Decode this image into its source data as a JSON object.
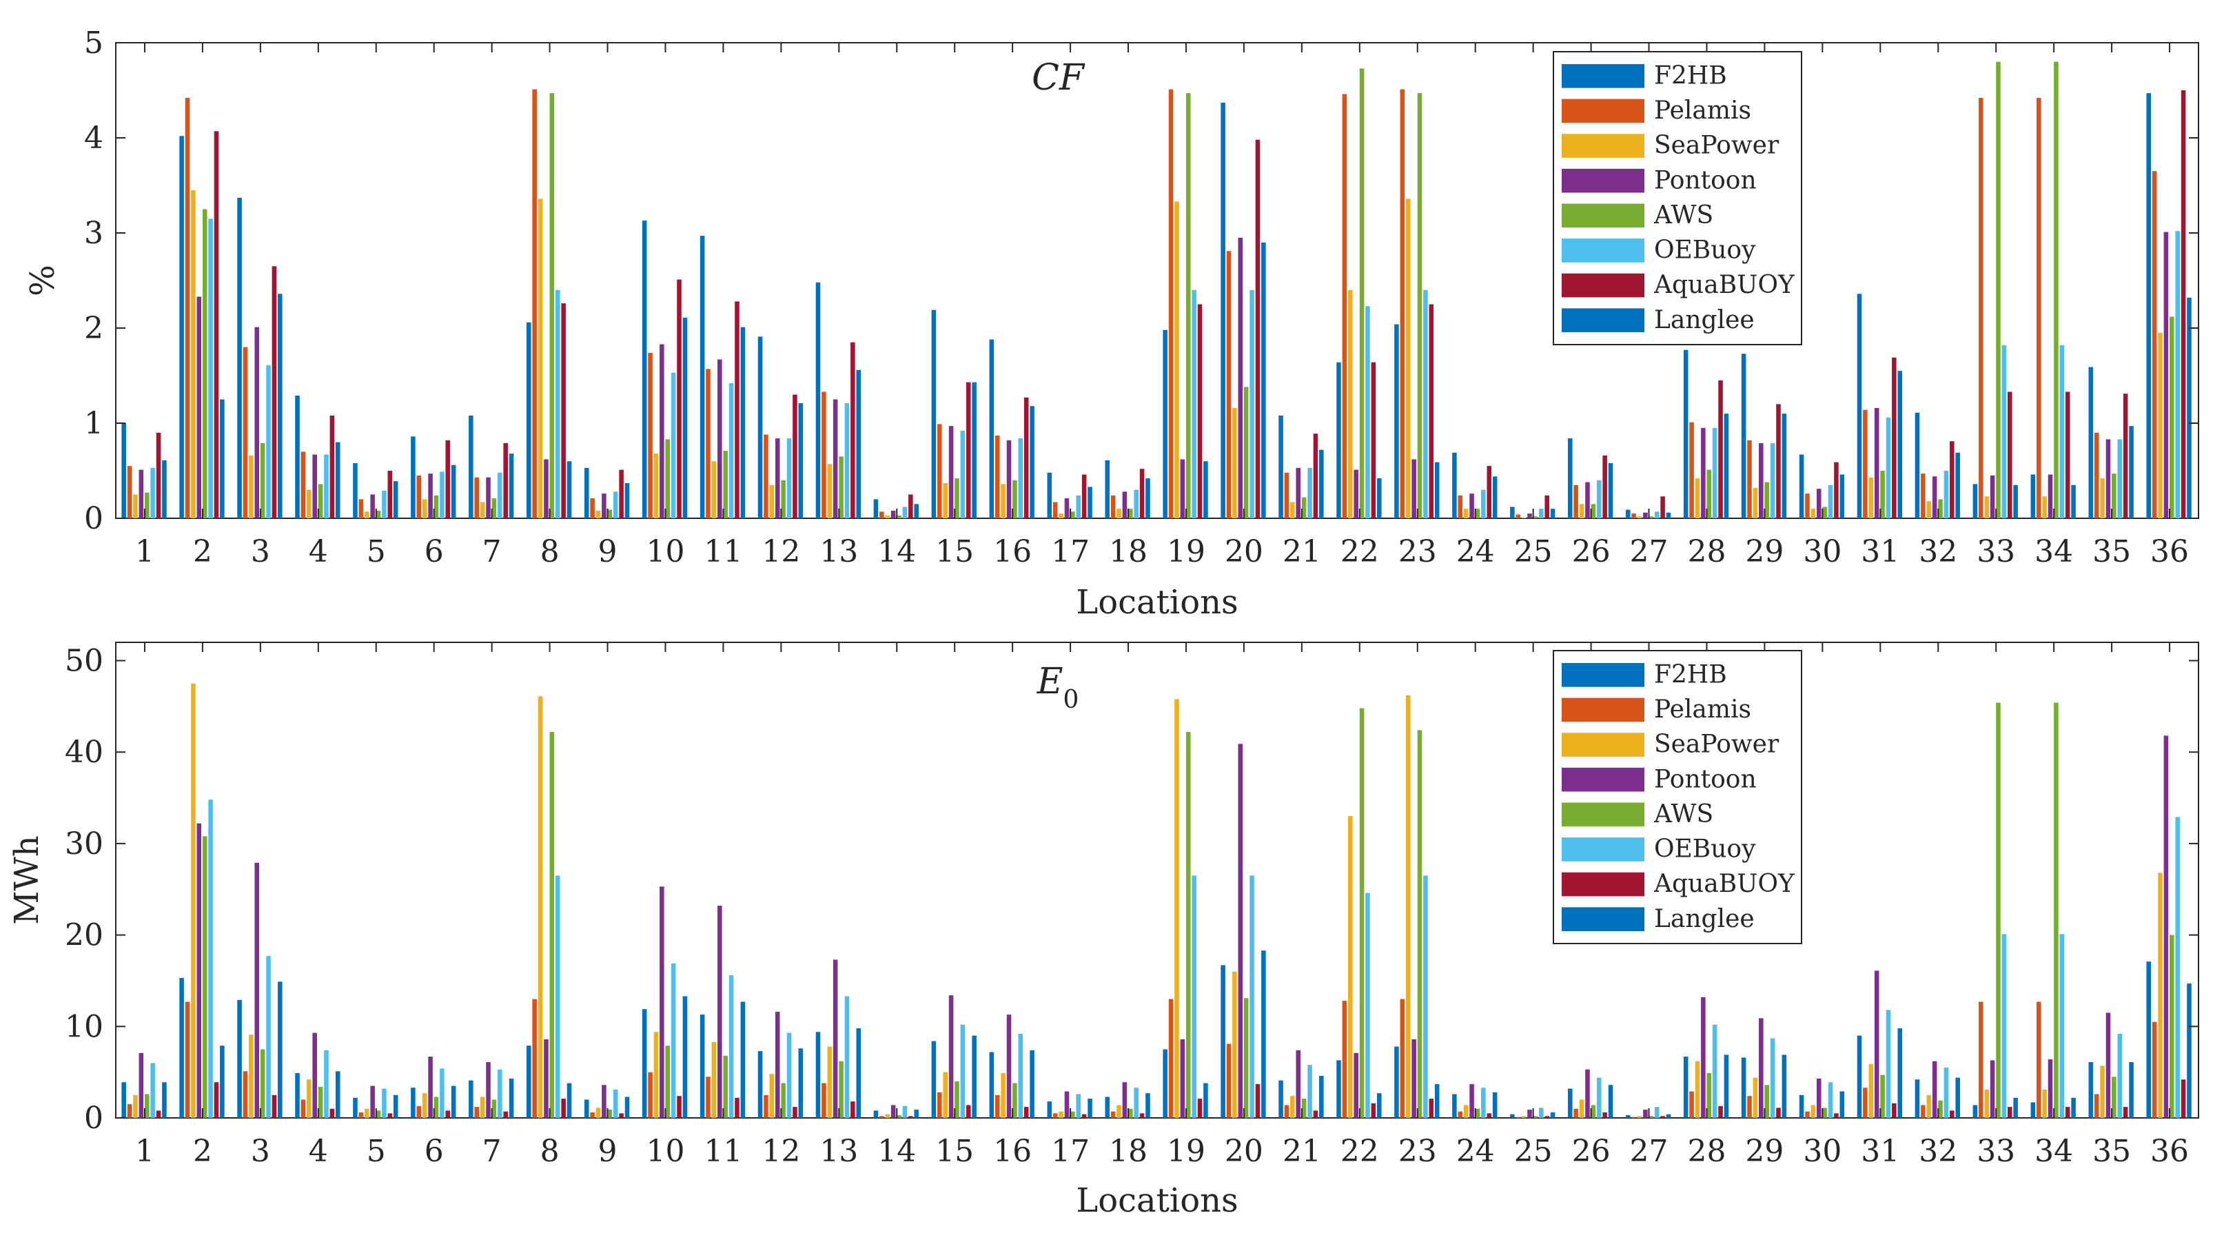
{
  "chart_data": [
    {
      "type": "bar",
      "title": "CF",
      "xlabel": "Locations",
      "ylabel": "%",
      "ylim": [
        0,
        5
      ],
      "yticks": [
        0,
        1,
        2,
        3,
        4,
        5
      ],
      "grid": false,
      "legend_position": "top-right",
      "categories": [
        "1",
        "2",
        "3",
        "4",
        "5",
        "6",
        "7",
        "8",
        "9",
        "10",
        "11",
        "12",
        "13",
        "14",
        "15",
        "16",
        "17",
        "18",
        "19",
        "20",
        "21",
        "22",
        "23",
        "24",
        "25",
        "26",
        "27",
        "28",
        "29",
        "30",
        "31",
        "32",
        "33",
        "34",
        "35",
        "36"
      ],
      "series": [
        {
          "name": "F2HB",
          "color": "#0072BD",
          "values": [
            1.0,
            4.02,
            3.37,
            1.29,
            0.58,
            0.86,
            1.08,
            2.06,
            0.53,
            3.13,
            2.97,
            1.91,
            2.48,
            0.2,
            2.19,
            1.88,
            0.48,
            0.61,
            1.98,
            4.37,
            1.08,
            1.64,
            2.04,
            0.69,
            0.12,
            0.84,
            0.09,
            1.77,
            1.73,
            0.67,
            2.36,
            1.11,
            0.36,
            0.46,
            1.59,
            4.47
          ]
        },
        {
          "name": "Pelamis",
          "color": "#D95319",
          "values": [
            0.55,
            4.42,
            1.8,
            0.7,
            0.2,
            0.45,
            0.43,
            4.51,
            0.21,
            1.74,
            1.57,
            0.88,
            1.33,
            0.07,
            0.99,
            0.87,
            0.17,
            0.24,
            4.51,
            2.81,
            0.48,
            4.46,
            4.51,
            0.24,
            0.04,
            0.35,
            0.05,
            1.01,
            0.82,
            0.26,
            1.14,
            0.47,
            4.42,
            4.42,
            0.9,
            3.65
          ]
        },
        {
          "name": "SeaPower",
          "color": "#EDB120",
          "values": [
            0.25,
            3.45,
            0.66,
            0.3,
            0.07,
            0.2,
            0.17,
            3.36,
            0.08,
            0.68,
            0.6,
            0.35,
            0.57,
            0.03,
            0.37,
            0.36,
            0.05,
            0.1,
            3.33,
            1.16,
            0.17,
            2.4,
            3.36,
            0.1,
            0.01,
            0.15,
            0.02,
            0.42,
            0.32,
            0.1,
            0.43,
            0.18,
            0.23,
            0.23,
            0.42,
            1.95
          ]
        },
        {
          "name": "Pontoon",
          "color": "#7E2F8E",
          "values": [
            0.51,
            2.33,
            2.01,
            0.67,
            0.25,
            0.47,
            0.43,
            0.62,
            0.26,
            1.83,
            1.67,
            0.84,
            1.25,
            0.08,
            0.97,
            0.82,
            0.21,
            0.28,
            0.62,
            2.95,
            0.53,
            0.51,
            0.62,
            0.26,
            0.05,
            0.38,
            0.06,
            0.95,
            0.79,
            0.31,
            1.16,
            0.44,
            0.45,
            0.46,
            0.83,
            3.01
          ]
        },
        {
          "name": "AWS",
          "color": "#77AC30",
          "values": [
            0.27,
            3.25,
            0.79,
            0.36,
            0.08,
            0.24,
            0.21,
            4.47,
            0.09,
            0.83,
            0.71,
            0.4,
            0.65,
            0.03,
            0.42,
            0.4,
            0.07,
            0.1,
            4.47,
            1.38,
            0.22,
            4.73,
            4.47,
            0.1,
            0.02,
            0.15,
            0.02,
            0.51,
            0.38,
            0.12,
            0.5,
            0.2,
            4.8,
            4.8,
            0.47,
            2.12
          ]
        },
        {
          "name": "OEBuoy",
          "color": "#4DBEEE",
          "values": [
            0.53,
            3.15,
            1.61,
            0.67,
            0.29,
            0.49,
            0.48,
            2.4,
            0.28,
            1.53,
            1.42,
            0.84,
            1.21,
            0.12,
            0.92,
            0.84,
            0.24,
            0.3,
            2.4,
            2.4,
            0.53,
            2.23,
            2.4,
            0.3,
            0.1,
            0.4,
            0.07,
            0.95,
            0.79,
            0.35,
            1.06,
            0.5,
            1.82,
            1.82,
            0.83,
            3.02
          ]
        },
        {
          "name": "AquaBUOY",
          "color": "#A2142F",
          "values": [
            0.9,
            4.07,
            2.65,
            1.08,
            0.5,
            0.82,
            0.79,
            2.26,
            0.51,
            2.51,
            2.28,
            1.3,
            1.85,
            0.25,
            1.43,
            1.27,
            0.46,
            0.52,
            2.25,
            3.98,
            0.89,
            1.64,
            2.25,
            0.55,
            0.24,
            0.66,
            0.23,
            1.45,
            1.2,
            0.59,
            1.69,
            0.81,
            1.33,
            1.33,
            1.31,
            4.5
          ]
        },
        {
          "name": "Langlee",
          "color": "#0072BD",
          "values": [
            0.61,
            1.25,
            2.36,
            0.8,
            0.39,
            0.56,
            0.68,
            0.6,
            0.37,
            2.11,
            2.01,
            1.21,
            1.56,
            0.15,
            1.43,
            1.18,
            0.33,
            0.42,
            0.6,
            2.9,
            0.72,
            0.42,
            0.59,
            0.44,
            0.1,
            0.58,
            0.06,
            1.1,
            1.1,
            0.46,
            1.55,
            0.69,
            0.35,
            0.35,
            0.97,
            2.32
          ]
        }
      ]
    },
    {
      "type": "bar",
      "title": "E0",
      "xlabel": "Locations",
      "ylabel": "MWh",
      "ylim": [
        0,
        52
      ],
      "yticks": [
        0,
        10,
        20,
        30,
        40,
        50
      ],
      "grid": false,
      "legend_position": "top-right",
      "categories": [
        "1",
        "2",
        "3",
        "4",
        "5",
        "6",
        "7",
        "8",
        "9",
        "10",
        "11",
        "12",
        "13",
        "14",
        "15",
        "16",
        "17",
        "18",
        "19",
        "20",
        "21",
        "22",
        "23",
        "24",
        "25",
        "26",
        "27",
        "28",
        "29",
        "30",
        "31",
        "32",
        "33",
        "34",
        "35",
        "36"
      ],
      "series": [
        {
          "name": "F2HB",
          "color": "#0072BD",
          "values": [
            3.9,
            15.3,
            12.9,
            4.9,
            2.2,
            3.3,
            4.1,
            7.9,
            2.0,
            11.9,
            11.3,
            7.3,
            9.4,
            0.8,
            8.4,
            7.2,
            1.8,
            2.3,
            7.5,
            16.7,
            4.1,
            6.3,
            7.8,
            2.6,
            0.4,
            3.2,
            0.3,
            6.7,
            6.6,
            2.5,
            9.0,
            4.2,
            1.4,
            1.7,
            6.1,
            17.1
          ]
        },
        {
          "name": "Pelamis",
          "color": "#D95319",
          "values": [
            1.5,
            12.7,
            5.1,
            2.0,
            0.6,
            1.3,
            1.2,
            13.0,
            0.6,
            5.0,
            4.5,
            2.5,
            3.8,
            0.2,
            2.8,
            2.5,
            0.5,
            0.7,
            13.0,
            8.1,
            1.4,
            12.8,
            13.0,
            0.7,
            0.1,
            1.0,
            0.1,
            2.9,
            2.4,
            0.7,
            3.3,
            1.4,
            12.7,
            12.7,
            2.6,
            10.5
          ]
        },
        {
          "name": "SeaPower",
          "color": "#EDB120",
          "values": [
            2.5,
            47.5,
            9.1,
            4.2,
            1.0,
            2.7,
            2.3,
            46.1,
            1.1,
            9.4,
            8.3,
            4.8,
            7.8,
            0.4,
            5.0,
            4.9,
            0.7,
            1.4,
            45.8,
            16.0,
            2.4,
            33.0,
            46.2,
            1.4,
            0.2,
            2.0,
            0.2,
            6.2,
            4.4,
            1.4,
            5.9,
            2.5,
            3.1,
            3.1,
            5.7,
            26.8
          ]
        },
        {
          "name": "Pontoon",
          "color": "#7E2F8E",
          "values": [
            7.1,
            32.2,
            27.9,
            9.3,
            3.5,
            6.7,
            6.1,
            8.6,
            3.6,
            25.3,
            23.2,
            11.6,
            17.3,
            1.4,
            13.4,
            11.3,
            2.9,
            3.9,
            8.6,
            40.9,
            7.4,
            7.1,
            8.6,
            3.7,
            0.9,
            5.3,
            0.9,
            13.2,
            10.9,
            4.3,
            16.1,
            6.2,
            6.3,
            6.4,
            11.5,
            41.8
          ]
        },
        {
          "name": "AWS",
          "color": "#77AC30",
          "values": [
            2.6,
            30.8,
            7.5,
            3.4,
            0.8,
            2.3,
            2.0,
            42.2,
            0.9,
            7.9,
            6.8,
            3.8,
            6.2,
            0.3,
            4.0,
            3.8,
            0.7,
            1.0,
            42.2,
            13.1,
            2.1,
            44.8,
            42.4,
            1.0,
            0.2,
            1.4,
            0.2,
            4.9,
            3.6,
            1.1,
            4.7,
            1.9,
            45.4,
            45.4,
            4.5,
            20.0
          ]
        },
        {
          "name": "OEBuoy",
          "color": "#4DBEEE",
          "values": [
            6.0,
            34.8,
            17.7,
            7.4,
            3.2,
            5.4,
            5.3,
            26.5,
            3.1,
            16.9,
            15.6,
            9.3,
            13.3,
            1.3,
            10.2,
            9.2,
            2.6,
            3.3,
            26.5,
            26.5,
            5.8,
            24.6,
            26.5,
            3.3,
            1.1,
            4.4,
            1.2,
            10.2,
            8.7,
            3.9,
            11.8,
            5.5,
            20.1,
            20.1,
            9.2,
            32.9
          ]
        },
        {
          "name": "AquaBUOY",
          "color": "#A2142F",
          "values": [
            0.8,
            3.9,
            2.5,
            1.0,
            0.5,
            0.8,
            0.7,
            2.1,
            0.5,
            2.4,
            2.2,
            1.2,
            1.8,
            0.2,
            1.4,
            1.2,
            0.4,
            0.5,
            2.1,
            3.7,
            0.8,
            1.6,
            2.1,
            0.5,
            0.2,
            0.6,
            0.2,
            1.3,
            1.1,
            0.5,
            1.6,
            0.8,
            1.2,
            1.2,
            1.2,
            4.2
          ]
        },
        {
          "name": "Langlee",
          "color": "#0072BD",
          "values": [
            3.9,
            7.9,
            14.9,
            5.1,
            2.5,
            3.5,
            4.3,
            3.8,
            2.3,
            13.3,
            12.7,
            7.6,
            9.8,
            0.9,
            9.0,
            7.4,
            2.1,
            2.7,
            3.8,
            18.3,
            4.6,
            2.7,
            3.7,
            2.8,
            0.6,
            3.6,
            0.4,
            6.9,
            6.9,
            2.9,
            9.8,
            4.4,
            2.2,
            2.2,
            6.1,
            14.7
          ]
        }
      ]
    }
  ]
}
